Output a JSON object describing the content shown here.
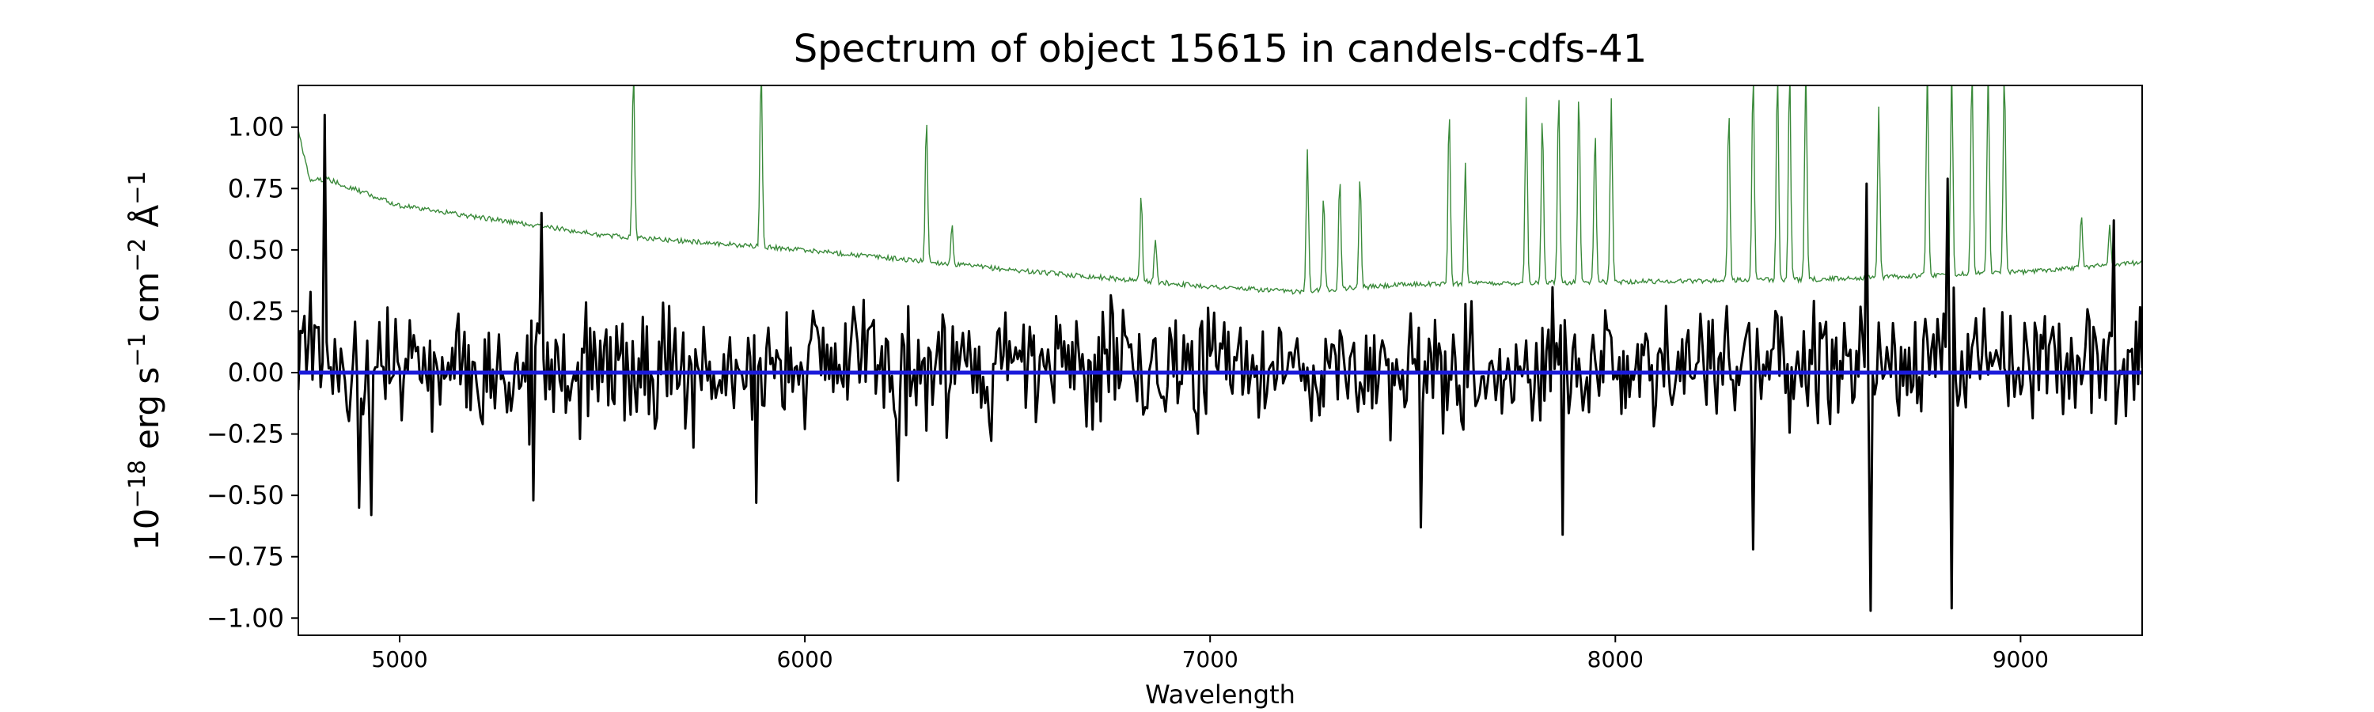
{
  "chart_data": {
    "type": "line",
    "title": "Spectrum of object 15615 in candels-cdfs-41",
    "xlabel": "Wavelength",
    "ylabel_parts": {
      "base": "10",
      "exp": "−18",
      "erg": " erg s",
      "s_exp": "−1",
      "cm": " cm",
      "cm_exp": "−2",
      "ang": " Å",
      "ang_exp": "−1"
    },
    "xlim": [
      4750,
      9300
    ],
    "ylim": [
      -1.07,
      1.17
    ],
    "x_ticks": [
      5000,
      6000,
      7000,
      8000,
      9000
    ],
    "y_ticks": [
      1.0,
      0.75,
      0.5,
      0.25,
      0.0,
      -0.25,
      -0.5,
      -0.75,
      -1.0
    ],
    "x_tick_labels": [
      "5000",
      "6000",
      "7000",
      "8000",
      "9000"
    ],
    "y_tick_labels": [
      "1.00",
      "0.75",
      "0.50",
      "0.25",
      "0.00",
      "−0.25",
      "−0.50",
      "−0.75",
      "−1.00"
    ],
    "grid": false,
    "series": [
      {
        "color": "#000000",
        "role": "flux",
        "x_start": 4750,
        "x_end": 9300,
        "noise_scale": 0.25,
        "extremes": [
          {
            "x": 4815,
            "y": 1.05
          },
          {
            "x": 4900,
            "y": -0.55
          },
          {
            "x": 4930,
            "y": -0.58
          },
          {
            "x": 5330,
            "y": -0.52
          },
          {
            "x": 5350,
            "y": 0.65
          },
          {
            "x": 5880,
            "y": -0.53
          },
          {
            "x": 6230,
            "y": -0.44
          },
          {
            "x": 7520,
            "y": -0.63
          },
          {
            "x": 7870,
            "y": -0.66
          },
          {
            "x": 8340,
            "y": -0.72
          },
          {
            "x": 8620,
            "y": 0.77
          },
          {
            "x": 8630,
            "y": -0.97
          },
          {
            "x": 8820,
            "y": 0.79
          },
          {
            "x": 8830,
            "y": -0.96
          },
          {
            "x": 9230,
            "y": 0.62
          }
        ]
      },
      {
        "color": "#3a8a3a",
        "role": "error",
        "continuum": [
          [
            4750,
            0.98
          ],
          [
            4780,
            0.78
          ],
          [
            4820,
            0.79
          ],
          [
            5000,
            0.68
          ],
          [
            5500,
            0.56
          ],
          [
            6000,
            0.5
          ],
          [
            6500,
            0.42
          ],
          [
            7000,
            0.35
          ],
          [
            7200,
            0.33
          ],
          [
            7500,
            0.36
          ],
          [
            8000,
            0.37
          ],
          [
            8500,
            0.38
          ],
          [
            9000,
            0.41
          ],
          [
            9300,
            0.45
          ]
        ],
        "peaks": [
          {
            "x": 5577,
            "y": 1.25
          },
          {
            "x": 5892,
            "y": 1.25
          },
          {
            "x": 6300,
            "y": 1.05
          },
          {
            "x": 6363,
            "y": 0.6
          },
          {
            "x": 6830,
            "y": 0.73
          },
          {
            "x": 6865,
            "y": 0.55
          },
          {
            "x": 7240,
            "y": 0.92
          },
          {
            "x": 7280,
            "y": 0.72
          },
          {
            "x": 7320,
            "y": 0.8
          },
          {
            "x": 7370,
            "y": 0.8
          },
          {
            "x": 7590,
            "y": 1.08
          },
          {
            "x": 7630,
            "y": 0.86
          },
          {
            "x": 7780,
            "y": 1.12
          },
          {
            "x": 7820,
            "y": 1.05
          },
          {
            "x": 7860,
            "y": 1.15
          },
          {
            "x": 7910,
            "y": 1.15
          },
          {
            "x": 7950,
            "y": 1.0
          },
          {
            "x": 7990,
            "y": 1.12
          },
          {
            "x": 8280,
            "y": 1.08
          },
          {
            "x": 8340,
            "y": 1.25
          },
          {
            "x": 8400,
            "y": 1.25
          },
          {
            "x": 8430,
            "y": 1.25
          },
          {
            "x": 8470,
            "y": 1.25
          },
          {
            "x": 8650,
            "y": 1.08
          },
          {
            "x": 8770,
            "y": 1.25
          },
          {
            "x": 8830,
            "y": 1.25
          },
          {
            "x": 8880,
            "y": 1.25
          },
          {
            "x": 8920,
            "y": 1.25
          },
          {
            "x": 8960,
            "y": 1.25
          },
          {
            "x": 9150,
            "y": 0.65
          },
          {
            "x": 9220,
            "y": 0.6
          }
        ]
      },
      {
        "color": "#1a1adb",
        "role": "zero-line",
        "x": [
          4750,
          9300
        ],
        "y": [
          0.0,
          0.0
        ]
      }
    ]
  }
}
